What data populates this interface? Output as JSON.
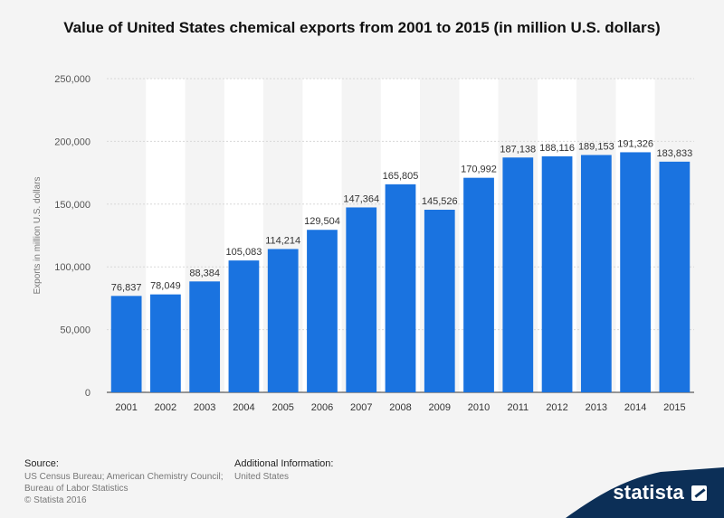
{
  "chart_data": {
    "type": "bar",
    "title": "Value of United States chemical exports from 2001 to 2015 (in million U.S. dollars)",
    "xlabel": "",
    "ylabel": "Exports in million U.S. dollars",
    "ylim": [
      0,
      250000
    ],
    "yticks": [
      0,
      50000,
      100000,
      150000,
      200000,
      250000
    ],
    "ytick_labels": [
      "0",
      "50,000",
      "100,000",
      "150,000",
      "200,000",
      "250,000"
    ],
    "categories": [
      "2001",
      "2002",
      "2003",
      "2004",
      "2005",
      "2006",
      "2007",
      "2008",
      "2009",
      "2010",
      "2011",
      "2012",
      "2013",
      "2014",
      "2015"
    ],
    "values": [
      76837,
      78049,
      88384,
      105083,
      114214,
      129504,
      147364,
      165805,
      145526,
      170992,
      187138,
      188116,
      189153,
      191326,
      183833
    ],
    "value_labels": [
      "76,837",
      "78,049",
      "88,384",
      "105,083",
      "114,214",
      "129,504",
      "147,364",
      "165,805",
      "145,526",
      "170,992",
      "187,138",
      "188,116",
      "189,153",
      "191,326",
      "183,833"
    ],
    "bar_color": "#1a73e0",
    "grid": true
  },
  "footer": {
    "source_header": "Source:",
    "source_lines": [
      "US Census Bureau; American Chemistry Council;",
      "Bureau of Labor Statistics",
      "© Statista 2016"
    ],
    "info_header": "Additional Information:",
    "info_text": "United States"
  },
  "brand": {
    "name": "statista",
    "color": "#0c2f57"
  }
}
